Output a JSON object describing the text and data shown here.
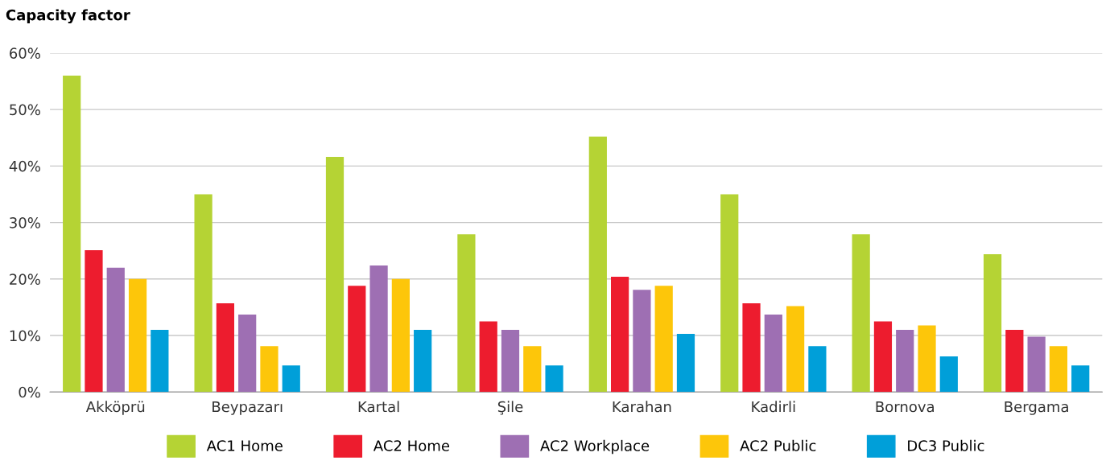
{
  "chart_data": {
    "type": "bar",
    "ylabel": "Capacity factor",
    "categories": [
      "Akköprü",
      "Beypazarı",
      "Kartal",
      "Şile",
      "Karahan",
      "Kadirli",
      "Bornova",
      "Bergama"
    ],
    "series": [
      {
        "name": "AC1 Home",
        "color": "#b5d334",
        "values": [
          56,
          35,
          41.6,
          27.9,
          45.2,
          35,
          27.9,
          24.4
        ]
      },
      {
        "name": "AC2 Home",
        "color": "#ed1c2e",
        "values": [
          25.1,
          15.7,
          18.8,
          12.5,
          20.4,
          15.7,
          12.5,
          11
        ]
      },
      {
        "name": "AC2 Workplace",
        "color": "#9e6fb3",
        "values": [
          22,
          13.7,
          22.4,
          11,
          18.1,
          13.7,
          11,
          9.8
        ]
      },
      {
        "name": "AC2 Public",
        "color": "#fdc60a",
        "values": [
          20,
          8.1,
          20,
          8.1,
          18.8,
          15.2,
          11.8,
          8.1
        ]
      },
      {
        "name": "DC3 Public",
        "color": "#009fd9",
        "values": [
          11,
          4.7,
          11,
          4.7,
          10.3,
          8.1,
          6.3,
          4.7
        ]
      }
    ],
    "ylim": [
      0,
      60
    ],
    "yticks": [
      {
        "value": 0,
        "label": "0%"
      },
      {
        "value": 10,
        "label": "10%"
      },
      {
        "value": 20,
        "label": "20%"
      },
      {
        "value": 30,
        "label": "30%"
      },
      {
        "value": 40,
        "label": "40%"
      },
      {
        "value": 50,
        "label": "50%"
      },
      {
        "value": 60,
        "label": "60%"
      }
    ],
    "grid": "y",
    "legend": "bottom"
  }
}
